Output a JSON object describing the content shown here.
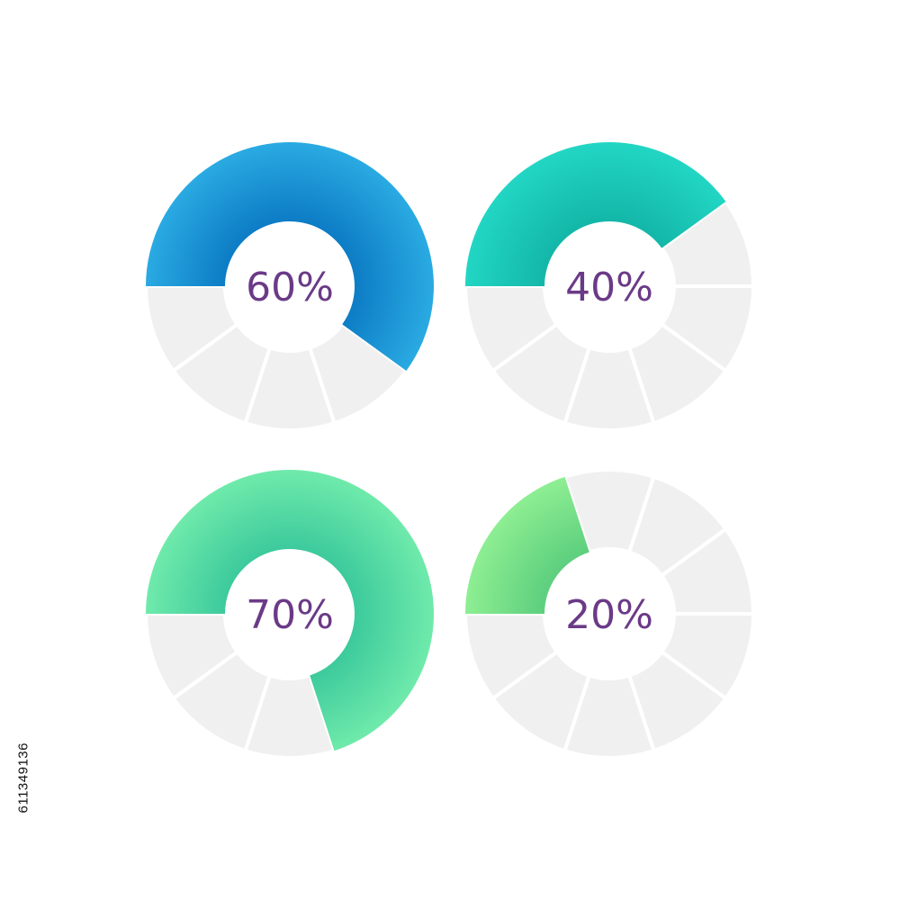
{
  "chart_data": [
    {
      "type": "pie",
      "variant": "segmented-donut",
      "segments": 10,
      "value": 60,
      "label": "60%",
      "colors": {
        "outer": "#2aaae2",
        "inner": "#0a78c2",
        "empty": "#f0f0f0"
      }
    },
    {
      "type": "pie",
      "variant": "segmented-donut",
      "segments": 10,
      "value": 40,
      "label": "40%",
      "colors": {
        "outer": "#22d6c4",
        "inner": "#12b4a6",
        "empty": "#f0f0f0"
      }
    },
    {
      "type": "pie",
      "variant": "segmented-donut",
      "segments": 10,
      "value": 70,
      "label": "70%",
      "colors": {
        "outer": "#6feaab",
        "inner": "#38c79b",
        "empty": "#f0f0f0"
      }
    },
    {
      "type": "pie",
      "variant": "segmented-donut",
      "segments": 10,
      "value": 20,
      "label": "20%",
      "colors": {
        "outer": "#8eee92",
        "inner": "#58cc7c",
        "empty": "#f0f0f0"
      }
    }
  ],
  "label_color": "#6b3a87",
  "watermark_id": "611349136"
}
